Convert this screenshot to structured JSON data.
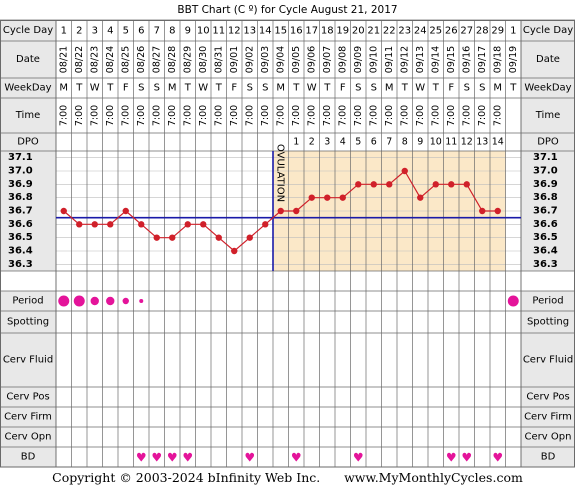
{
  "chart_data": {
    "type": "line",
    "title": "BBT Chart (C º) for Cycle August 21, 2017",
    "row_labels": {
      "cycle_day": "Cycle Day",
      "date": "Date",
      "weekday": "WeekDay",
      "time": "Time",
      "dpo": "DPO",
      "period": "Period",
      "spotting": "Spotting",
      "cerv_fluid": "Cerv Fluid",
      "cerv_pos": "Cerv Pos",
      "cerv_firm": "Cerv Firm",
      "cerv_opn": "Cerv Opn",
      "bd": "BD"
    },
    "cycle_days": [
      "1",
      "2",
      "3",
      "4",
      "5",
      "6",
      "7",
      "8",
      "9",
      "10",
      "11",
      "12",
      "13",
      "14",
      "15",
      "16",
      "17",
      "18",
      "19",
      "20",
      "21",
      "22",
      "23",
      "24",
      "25",
      "26",
      "27",
      "28",
      "29",
      "1"
    ],
    "dates": [
      "08/21",
      "08/22",
      "08/23",
      "08/24",
      "08/25",
      "08/26",
      "08/27",
      "08/28",
      "08/29",
      "08/30",
      "08/31",
      "09/01",
      "09/02",
      "09/03",
      "09/04",
      "09/05",
      "09/06",
      "09/07",
      "09/08",
      "09/09",
      "09/10",
      "09/11",
      "09/12",
      "09/13",
      "09/14",
      "09/15",
      "09/16",
      "09/17",
      "09/18",
      "09/19"
    ],
    "weekdays": [
      "M",
      "T",
      "W",
      "T",
      "F",
      "S",
      "S",
      "M",
      "T",
      "W",
      "T",
      "F",
      "S",
      "S",
      "M",
      "T",
      "W",
      "T",
      "F",
      "S",
      "S",
      "M",
      "T",
      "W",
      "T",
      "F",
      "S",
      "S",
      "M",
      "T"
    ],
    "times": [
      "7:00",
      "7:00",
      "7:00",
      "7:00",
      "7:00",
      "7:00",
      "7:00",
      "7:00",
      "7:00",
      "7:00",
      "7:00",
      "7:00",
      "7:00",
      "7:00",
      "7:00",
      "7:00",
      "7:00",
      "7:00",
      "7:00",
      "7:00",
      "7:00",
      "7:00",
      "7:00",
      "7:00",
      "7:00",
      "7:00",
      "7:00",
      "7:00",
      "7:00",
      ""
    ],
    "dpo": [
      "",
      "",
      "",
      "",
      "",
      "",
      "",
      "",
      "",
      "",
      "",
      "",
      "",
      "",
      "",
      "1",
      "2",
      "3",
      "4",
      "5",
      "6",
      "7",
      "8",
      "9",
      "10",
      "11",
      "12",
      "13",
      "14",
      ""
    ],
    "y_ticks": [
      "37.1",
      "37.0",
      "36.9",
      "36.8",
      "36.7",
      "36.6",
      "36.5",
      "36.4",
      "36.3"
    ],
    "ylim": [
      36.25,
      37.15
    ],
    "temperatures": [
      36.7,
      36.6,
      36.6,
      36.6,
      36.7,
      36.6,
      36.5,
      36.5,
      36.6,
      36.6,
      36.5,
      36.4,
      36.5,
      36.6,
      36.7,
      36.7,
      36.8,
      36.8,
      36.8,
      36.9,
      36.9,
      36.9,
      37.0,
      36.8,
      36.9,
      36.9,
      36.9,
      36.7,
      36.7,
      null
    ],
    "coverline": 36.65,
    "ovulation_label": "OVULATION",
    "ovulation_after_day_index": 14,
    "period_sizes": [
      "heavy",
      "heavy",
      "medium",
      "medium",
      "light",
      "spotting",
      "",
      "",
      "",
      "",
      "",
      "",
      "",
      "",
      "",
      "",
      "",
      "",
      "",
      "",
      "",
      "",
      "",
      "",
      "",
      "",
      "",
      "",
      "",
      "heavy"
    ],
    "bd_days": [
      5,
      6,
      7,
      8,
      12,
      15,
      19,
      25,
      26,
      28
    ],
    "colors": {
      "border": "#6a6a6a",
      "header_bg": "#ffffff",
      "label_bg": "#e8e8e8",
      "shade": "#fbe8c8",
      "line": "#d0202a",
      "grid": "#bdbdbd",
      "blue": "#1a1aa8",
      "pink": "#e4149a"
    }
  },
  "footer": {
    "copyright": "Copyright © 2003-2024 bInfinity Web Inc.",
    "site": "www.MyMonthlyCycles.com"
  }
}
